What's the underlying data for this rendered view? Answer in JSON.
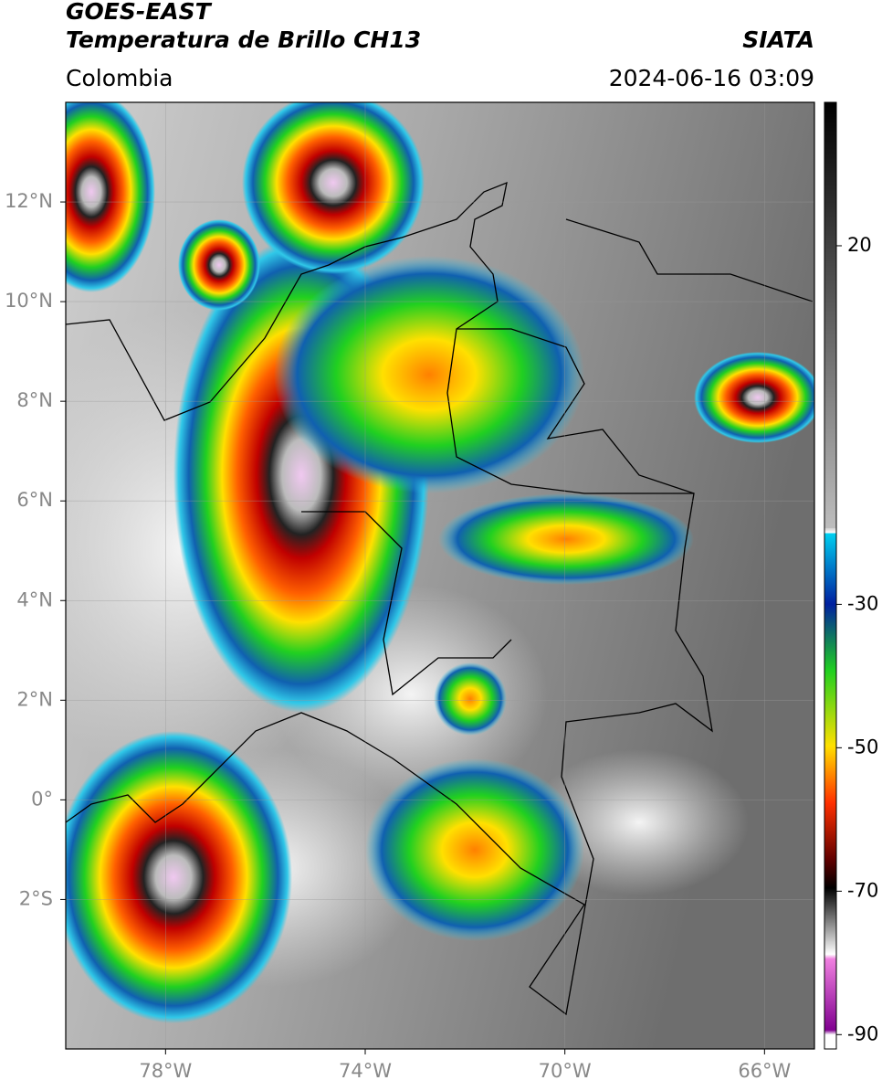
{
  "header": {
    "title": "GOES-EAST",
    "subtitle": "Temperatura de Brillo CH13",
    "source": "SIATA",
    "region": "Colombia",
    "datetime": "2024-06-16 03:09"
  },
  "map": {
    "xlim": [
      -80,
      -65
    ],
    "ylim": [
      -5,
      14
    ],
    "xticks": [
      {
        "value": -78,
        "label": "78°W"
      },
      {
        "value": -74,
        "label": "74°W"
      },
      {
        "value": -70,
        "label": "70°W"
      },
      {
        "value": -66,
        "label": "66°W"
      }
    ],
    "yticks": [
      {
        "value": 12,
        "label": "12°N"
      },
      {
        "value": 10,
        "label": "10°N"
      },
      {
        "value": 8,
        "label": "8°N"
      },
      {
        "value": 6,
        "label": "6°N"
      },
      {
        "value": 4,
        "label": "4°N"
      },
      {
        "value": 2,
        "label": "2°N"
      },
      {
        "value": 0,
        "label": "0°"
      },
      {
        "value": -2,
        "label": "2°S"
      }
    ],
    "grid": true
  },
  "colorbar": {
    "lim": [
      -92,
      40
    ],
    "ticks": [
      20,
      -30,
      -50,
      -70,
      -90
    ]
  }
}
